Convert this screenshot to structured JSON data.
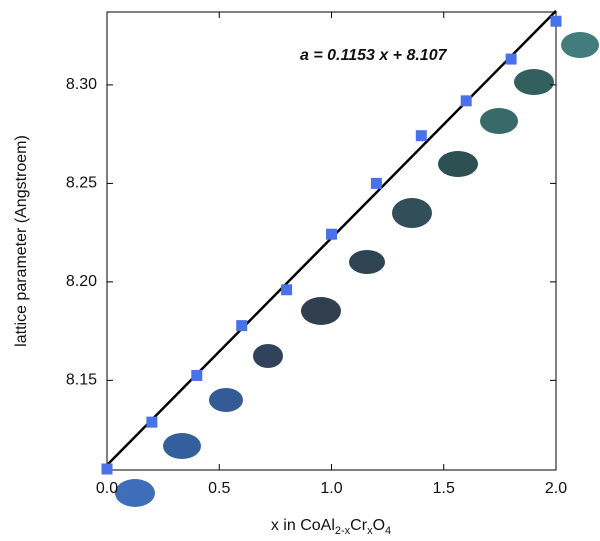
{
  "chart_data": {
    "type": "scatter",
    "x_label": [
      "x in CoAl",
      "2-x",
      "Cr",
      "x",
      "O",
      "4"
    ],
    "y_label": "lattice parameter (Angstroem)",
    "x": [
      0,
      0.2,
      0.4,
      0.6,
      0.8,
      1.0,
      1.2,
      1.4,
      1.6,
      1.8,
      2.0
    ],
    "series": [
      {
        "color": "#4a72e8",
        "values": [
          8.105,
          8.1288,
          8.1525,
          8.1778,
          8.196,
          8.2242,
          8.25,
          8.2742,
          8.2919,
          8.3131,
          8.3323
        ]
      }
    ],
    "fit": {
      "slope": 0.1153,
      "intercept": 8.107,
      "label": "a = 0.1153 x + 8.107",
      "color": "#000000"
    },
    "xlim": [
      0,
      2.0
    ],
    "ylim": [
      8.1045,
      8.337
    ],
    "xticks": [
      {
        "value": 0,
        "label": "0.0"
      },
      0.5,
      {
        "value": 1.0,
        "label": "1.0"
      },
      1.5,
      {
        "value": 2.0,
        "label": "2.0"
      }
    ],
    "yticks": [
      8.15,
      {
        "value": 8.2,
        "label": "8.20"
      },
      8.25,
      {
        "value": 8.3,
        "label": "8.30"
      }
    ],
    "grid": false
  }
}
